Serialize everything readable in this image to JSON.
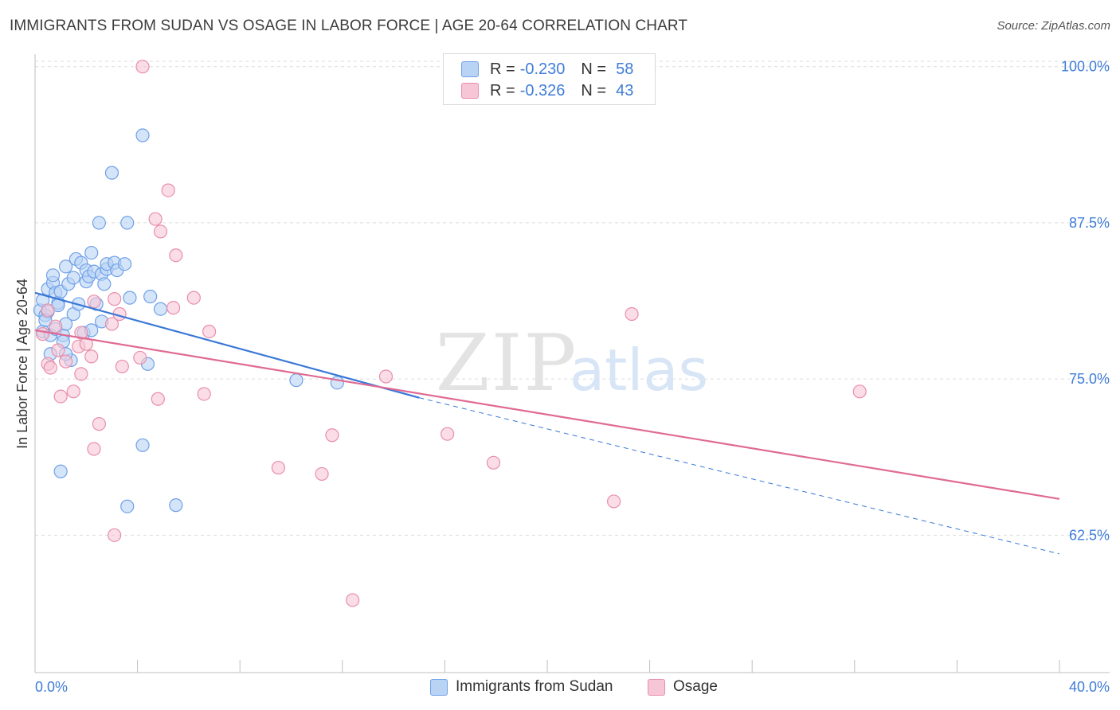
{
  "header": {
    "title": "IMMIGRANTS FROM SUDAN VS OSAGE IN LABOR FORCE | AGE 20-64 CORRELATION CHART",
    "source": "Source: ZipAtlas.com"
  },
  "watermark": {
    "zip": "ZIP",
    "atlas": "atlas"
  },
  "legend": {
    "rows": [
      {
        "r_label": "R =",
        "r_value": "-0.230",
        "n_label": "N =",
        "n_value": "58",
        "color": "#6fa0e8",
        "fill": "#b9d3f5"
      },
      {
        "r_label": "R =",
        "r_value": "-0.326",
        "n_label": "N =",
        "n_value": "43",
        "color": "#e88fab",
        "fill": "#f7c6d6"
      }
    ]
  },
  "bottom_legend": [
    {
      "label": "Immigrants from Sudan",
      "color": "#6fa0e8",
      "fill": "#b9d3f5"
    },
    {
      "label": "Osage",
      "color": "#e88fab",
      "fill": "#f7c6d6"
    }
  ],
  "chart_data": {
    "type": "scatter",
    "ylabel": "In Labor Force | Age 20-64",
    "xlim": [
      0,
      40
    ],
    "ylim": [
      51.5,
      101
    ],
    "x_tick_labels": [
      "0.0%",
      "40.0%"
    ],
    "y_ticks": [
      62.5,
      75.0,
      87.5,
      100.0
    ],
    "y_tick_labels": [
      "62.5%",
      "75.0%",
      "87.5%",
      "100.0%"
    ],
    "grid": true,
    "series": [
      {
        "name": "Immigrants from Sudan",
        "color": "#3a78d6",
        "fill": "#b9d3f5",
        "stroke": "#6fa0e8",
        "points": [
          [
            0.2,
            80.5
          ],
          [
            0.3,
            81.3
          ],
          [
            0.3,
            78.8
          ],
          [
            0.4,
            80.1
          ],
          [
            0.5,
            80.4
          ],
          [
            0.5,
            82.2
          ],
          [
            0.6,
            78.5
          ],
          [
            0.7,
            82.7
          ],
          [
            0.7,
            83.3
          ],
          [
            0.8,
            79.0
          ],
          [
            0.8,
            81.9
          ],
          [
            0.9,
            81.1
          ],
          [
            1.0,
            82.0
          ],
          [
            1.0,
            67.6
          ],
          [
            1.1,
            78.5
          ],
          [
            1.2,
            79.4
          ],
          [
            1.2,
            84.0
          ],
          [
            1.3,
            82.6
          ],
          [
            1.4,
            76.5
          ],
          [
            1.5,
            80.2
          ],
          [
            1.5,
            83.1
          ],
          [
            1.6,
            84.6
          ],
          [
            1.7,
            81.0
          ],
          [
            1.8,
            84.3
          ],
          [
            1.9,
            78.7
          ],
          [
            2.0,
            82.8
          ],
          [
            2.0,
            83.7
          ],
          [
            2.1,
            83.2
          ],
          [
            2.2,
            78.9
          ],
          [
            2.2,
            85.1
          ],
          [
            2.3,
            83.6
          ],
          [
            2.4,
            81.0
          ],
          [
            2.5,
            87.5
          ],
          [
            2.6,
            83.4
          ],
          [
            2.6,
            79.6
          ],
          [
            2.7,
            82.6
          ],
          [
            2.8,
            83.8
          ],
          [
            2.8,
            84.2
          ],
          [
            3.0,
            91.5
          ],
          [
            3.1,
            84.3
          ],
          [
            3.2,
            83.7
          ],
          [
            3.5,
            84.2
          ],
          [
            3.6,
            87.5
          ],
          [
            3.7,
            81.5
          ],
          [
            4.2,
            94.5
          ],
          [
            4.2,
            69.7
          ],
          [
            4.4,
            76.2
          ],
          [
            4.5,
            81.6
          ],
          [
            4.9,
            80.6
          ],
          [
            5.5,
            64.9
          ],
          [
            3.6,
            64.8
          ],
          [
            10.2,
            74.9
          ],
          [
            11.8,
            74.7
          ],
          [
            0.6,
            77.0
          ],
          [
            0.4,
            79.7
          ],
          [
            1.2,
            77.0
          ],
          [
            0.9,
            80.9
          ],
          [
            1.1,
            78.0
          ]
        ],
        "trend": {
          "x0": 0.0,
          "y0": 81.9,
          "x1": 15.0,
          "y1": 73.5,
          "dash_to_x": 40.0,
          "dash_to_y": 61.0
        }
      },
      {
        "name": "Osage",
        "color": "#e06a93",
        "fill": "#f7c6d6",
        "stroke": "#e88fab",
        "points": [
          [
            0.3,
            78.6
          ],
          [
            0.5,
            80.5
          ],
          [
            0.5,
            76.2
          ],
          [
            0.6,
            75.9
          ],
          [
            0.8,
            79.2
          ],
          [
            0.9,
            77.3
          ],
          [
            1.0,
            73.6
          ],
          [
            1.2,
            76.4
          ],
          [
            1.5,
            74.0
          ],
          [
            1.7,
            77.6
          ],
          [
            1.8,
            78.7
          ],
          [
            1.8,
            75.4
          ],
          [
            2.0,
            77.8
          ],
          [
            2.3,
            69.4
          ],
          [
            2.2,
            76.8
          ],
          [
            2.3,
            81.2
          ],
          [
            2.5,
            71.4
          ],
          [
            3.0,
            79.4
          ],
          [
            3.1,
            81.4
          ],
          [
            3.3,
            80.2
          ],
          [
            3.4,
            76.0
          ],
          [
            3.1,
            62.5
          ],
          [
            4.1,
            76.7
          ],
          [
            4.2,
            100.0
          ],
          [
            4.7,
            87.8
          ],
          [
            4.8,
            73.4
          ],
          [
            4.9,
            86.8
          ],
          [
            5.2,
            90.1
          ],
          [
            5.4,
            80.7
          ],
          [
            5.5,
            84.9
          ],
          [
            6.2,
            81.5
          ],
          [
            6.8,
            78.8
          ],
          [
            6.6,
            73.8
          ],
          [
            9.5,
            67.9
          ],
          [
            11.2,
            67.4
          ],
          [
            11.6,
            70.5
          ],
          [
            12.4,
            57.3
          ],
          [
            13.7,
            75.2
          ],
          [
            16.1,
            70.6
          ],
          [
            17.9,
            68.3
          ],
          [
            22.6,
            65.2
          ],
          [
            23.3,
            80.2
          ],
          [
            32.2,
            74.0
          ]
        ],
        "trend": {
          "x0": 0.0,
          "y0": 78.9,
          "x1": 40.0,
          "y1": 65.4
        }
      }
    ]
  }
}
